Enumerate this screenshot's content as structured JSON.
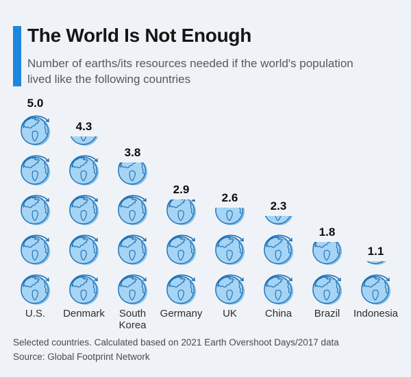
{
  "header": {
    "title": "The World Is Not Enough",
    "subtitle": "Number of earths/its resources needed if the world's population lived like the following countries",
    "accent_color": "#1d87de"
  },
  "chart_data": {
    "type": "pictogram-bar",
    "icon": "earth-globe-icon",
    "unit": "earths",
    "categories": [
      "U.S.",
      "Denmark",
      "South Korea",
      "Germany",
      "UK",
      "China",
      "Brazil",
      "Indonesia"
    ],
    "values": [
      5.0,
      4.3,
      3.8,
      2.9,
      2.6,
      2.3,
      1.8,
      1.1
    ],
    "value_labels": [
      "5.0",
      "4.3",
      "3.8",
      "2.9",
      "2.6",
      "2.3",
      "1.8",
      "1.1"
    ],
    "ylim": [
      0,
      5
    ],
    "icon_per_unit": 1,
    "orientation": "vertical-stacked-icons",
    "grid": false,
    "legend": "none",
    "colors": {
      "icon_fill": "#a6d4f4",
      "icon_outline": "#1f72b6",
      "icon_shadow": "#85bfe9",
      "background": "#eff3f8"
    }
  },
  "footer": {
    "note": "Selected countries. Calculated based on 2021 Earth Overshoot Days/2017 data",
    "source": "Source: Global Footprint Network"
  }
}
